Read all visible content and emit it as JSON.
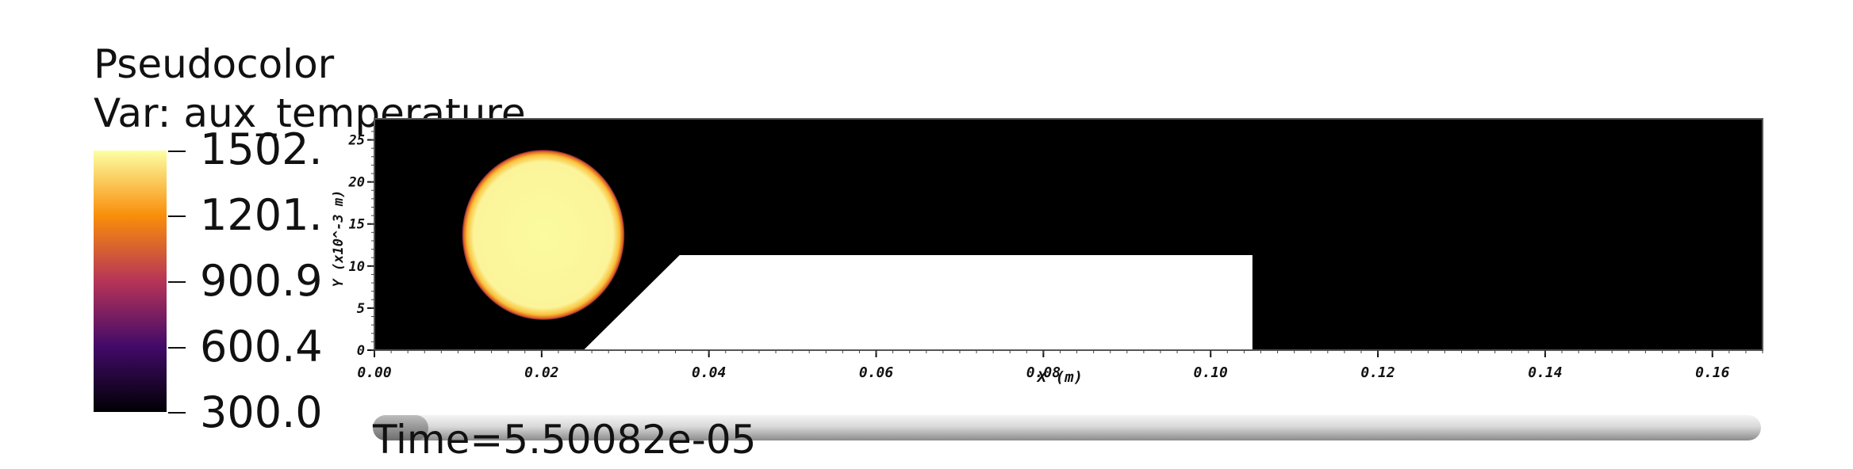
{
  "legend": {
    "title": "Pseudocolor",
    "var_label": "Var: aux_temperature",
    "tick_labels": [
      "1502.",
      "1201.",
      "900.9",
      "600.4",
      "300.0"
    ],
    "range": [
      300.0,
      1502.0
    ],
    "colormap": "inferno",
    "colors": {
      "high": "#fcffa4",
      "mid_high": "#f98e09",
      "mid": "#b63458",
      "mid_low": "#420a68",
      "low": "#000004"
    }
  },
  "time": {
    "label": "Time=5.50082e-05",
    "progress": 0.04
  },
  "chart_data": {
    "type": "heatmap",
    "title": "Pseudocolor",
    "variable": "aux_temperature",
    "xlabel": "X (m)",
    "ylabel": "Y (x10^-3 m)",
    "xlim": [
      0.0,
      0.166
    ],
    "ylim": [
      0.0,
      27.5
    ],
    "xticks": [
      0.0,
      0.02,
      0.04,
      0.06,
      0.08,
      0.1,
      0.12,
      0.14,
      0.16
    ],
    "xtick_labels": [
      "0.00",
      "0.02",
      "0.04",
      "0.06",
      "0.08",
      "0.10",
      "0.12",
      "0.14",
      "0.16"
    ],
    "yticks": [
      0,
      5,
      10,
      15,
      20,
      25
    ],
    "ytick_labels": [
      "0",
      "5",
      "10",
      "15",
      "20",
      "25"
    ],
    "background_value": 300.0,
    "hot_region": {
      "shape": "circle",
      "center_x": 0.0202,
      "center_y": 13.7,
      "radius_x": 0.0097,
      "radius_y": 10.1,
      "value": 1502.0
    },
    "void_region": {
      "fill": "#ffffff",
      "polygon": [
        [
          0.025,
          0.0
        ],
        [
          0.105,
          0.0
        ],
        [
          0.105,
          11.3
        ],
        [
          0.0365,
          11.3
        ]
      ]
    }
  }
}
